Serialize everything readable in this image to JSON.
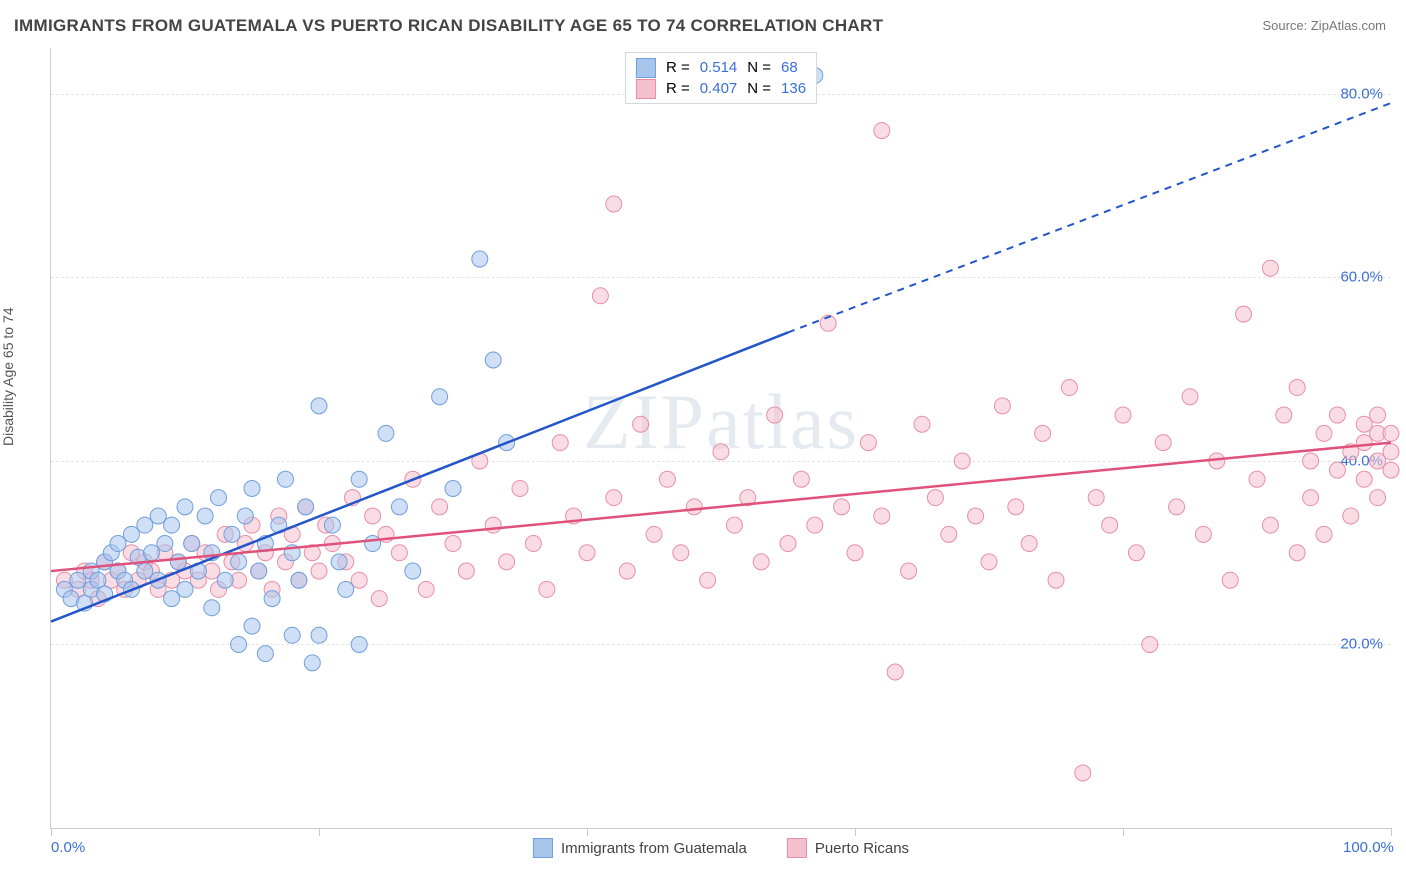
{
  "title": "IMMIGRANTS FROM GUATEMALA VS PUERTO RICAN DISABILITY AGE 65 TO 74 CORRELATION CHART",
  "source": "Source: ZipAtlas.com",
  "watermark": "ZIPatlas",
  "y_axis_label": "Disability Age 65 to 74",
  "chart": {
    "type": "scatter",
    "xlim": [
      0,
      100
    ],
    "ylim": [
      0,
      85
    ],
    "x_ticks": [
      0,
      20,
      40,
      60,
      80,
      100
    ],
    "y_gridlines": [
      20,
      40,
      60,
      80
    ],
    "x_labels": [
      {
        "v": 0,
        "t": "0.0%"
      },
      {
        "v": 100,
        "t": "100.0%"
      }
    ],
    "y_labels": [
      {
        "v": 20,
        "t": "20.0%"
      },
      {
        "v": 40,
        "t": "40.0%"
      },
      {
        "v": 60,
        "t": "60.0%"
      },
      {
        "v": 80,
        "t": "80.0%"
      }
    ],
    "grid_color": "#e4e4e4",
    "background_color": "#ffffff",
    "marker_radius": 8,
    "marker_opacity": 0.55,
    "series": [
      {
        "name": "Immigrants from Guatemala",
        "color_fill": "#a8c5ec",
        "color_stroke": "#6f9fdd",
        "trend_color": "#2356c9",
        "trend_width": 2.5,
        "trend_solid": {
          "x1": 0,
          "y1": 22.5,
          "x2": 55,
          "y2": 54
        },
        "trend_dash": {
          "x1": 55,
          "y1": 54,
          "x2": 100,
          "y2": 79
        },
        "R": "0.514",
        "N": "68",
        "points": [
          [
            1,
            26
          ],
          [
            1.5,
            25
          ],
          [
            2,
            27
          ],
          [
            2.5,
            24.5
          ],
          [
            3,
            28
          ],
          [
            3,
            26
          ],
          [
            3.5,
            27
          ],
          [
            4,
            29
          ],
          [
            4,
            25.5
          ],
          [
            4.5,
            30
          ],
          [
            5,
            28
          ],
          [
            5,
            31
          ],
          [
            5.5,
            27
          ],
          [
            6,
            32
          ],
          [
            6,
            26
          ],
          [
            6.5,
            29.5
          ],
          [
            7,
            33
          ],
          [
            7,
            28
          ],
          [
            7.5,
            30
          ],
          [
            8,
            34
          ],
          [
            8,
            27
          ],
          [
            8.5,
            31
          ],
          [
            9,
            33
          ],
          [
            9,
            25
          ],
          [
            9.5,
            29
          ],
          [
            10,
            35
          ],
          [
            10,
            26
          ],
          [
            10.5,
            31
          ],
          [
            11,
            28
          ],
          [
            11.5,
            34
          ],
          [
            12,
            30
          ],
          [
            12,
            24
          ],
          [
            12.5,
            36
          ],
          [
            13,
            27
          ],
          [
            13.5,
            32
          ],
          [
            14,
            20
          ],
          [
            14,
            29
          ],
          [
            14.5,
            34
          ],
          [
            15,
            22
          ],
          [
            15,
            37
          ],
          [
            15.5,
            28
          ],
          [
            16,
            31
          ],
          [
            16,
            19
          ],
          [
            16.5,
            25
          ],
          [
            17,
            33
          ],
          [
            17.5,
            38
          ],
          [
            18,
            21
          ],
          [
            18,
            30
          ],
          [
            18.5,
            27
          ],
          [
            19,
            35
          ],
          [
            19.5,
            18
          ],
          [
            20,
            21
          ],
          [
            20,
            46
          ],
          [
            21,
            33
          ],
          [
            21.5,
            29
          ],
          [
            22,
            26
          ],
          [
            23,
            20
          ],
          [
            23,
            38
          ],
          [
            24,
            31
          ],
          [
            25,
            43
          ],
          [
            26,
            35
          ],
          [
            27,
            28
          ],
          [
            29,
            47
          ],
          [
            30,
            37
          ],
          [
            32,
            62
          ],
          [
            33,
            51
          ],
          [
            57,
            82
          ],
          [
            34,
            42
          ]
        ]
      },
      {
        "name": "Puerto Ricans",
        "color_fill": "#f5c0ce",
        "color_stroke": "#e88fa8",
        "trend_color": "#e0527b",
        "trend_width": 2.5,
        "trend_solid": {
          "x1": 0,
          "y1": 28,
          "x2": 100,
          "y2": 42
        },
        "R": "0.407",
        "N": "136",
        "points": [
          [
            1,
            27
          ],
          [
            2,
            26
          ],
          [
            2.5,
            28
          ],
          [
            3,
            27
          ],
          [
            3.5,
            25
          ],
          [
            4,
            29
          ],
          [
            4.5,
            27
          ],
          [
            5,
            28
          ],
          [
            5.5,
            26
          ],
          [
            6,
            30
          ],
          [
            6.5,
            27
          ],
          [
            7,
            29
          ],
          [
            7.5,
            28
          ],
          [
            8,
            26
          ],
          [
            8.5,
            30
          ],
          [
            9,
            27
          ],
          [
            9.5,
            29
          ],
          [
            10,
            28
          ],
          [
            10.5,
            31
          ],
          [
            11,
            27
          ],
          [
            11.5,
            30
          ],
          [
            12,
            28
          ],
          [
            12.5,
            26
          ],
          [
            13,
            32
          ],
          [
            13.5,
            29
          ],
          [
            14,
            27
          ],
          [
            14.5,
            31
          ],
          [
            15,
            33
          ],
          [
            15.5,
            28
          ],
          [
            16,
            30
          ],
          [
            16.5,
            26
          ],
          [
            17,
            34
          ],
          [
            17.5,
            29
          ],
          [
            18,
            32
          ],
          [
            18.5,
            27
          ],
          [
            19,
            35
          ],
          [
            19.5,
            30
          ],
          [
            20,
            28
          ],
          [
            20.5,
            33
          ],
          [
            21,
            31
          ],
          [
            22,
            29
          ],
          [
            22.5,
            36
          ],
          [
            23,
            27
          ],
          [
            24,
            34
          ],
          [
            24.5,
            25
          ],
          [
            25,
            32
          ],
          [
            26,
            30
          ],
          [
            27,
            38
          ],
          [
            28,
            26
          ],
          [
            29,
            35
          ],
          [
            30,
            31
          ],
          [
            31,
            28
          ],
          [
            32,
            40
          ],
          [
            33,
            33
          ],
          [
            34,
            29
          ],
          [
            35,
            37
          ],
          [
            36,
            31
          ],
          [
            37,
            26
          ],
          [
            38,
            42
          ],
          [
            39,
            34
          ],
          [
            40,
            30
          ],
          [
            41,
            58
          ],
          [
            42,
            36
          ],
          [
            42,
            68
          ],
          [
            43,
            28
          ],
          [
            44,
            44
          ],
          [
            45,
            32
          ],
          [
            46,
            38
          ],
          [
            47,
            30
          ],
          [
            48,
            35
          ],
          [
            49,
            27
          ],
          [
            50,
            41
          ],
          [
            51,
            33
          ],
          [
            52,
            36
          ],
          [
            53,
            29
          ],
          [
            54,
            45
          ],
          [
            55,
            31
          ],
          [
            56,
            38
          ],
          [
            57,
            33
          ],
          [
            58,
            55
          ],
          [
            59,
            35
          ],
          [
            60,
            30
          ],
          [
            61,
            42
          ],
          [
            62,
            34
          ],
          [
            62,
            76
          ],
          [
            63,
            17
          ],
          [
            64,
            28
          ],
          [
            65,
            44
          ],
          [
            66,
            36
          ],
          [
            67,
            32
          ],
          [
            68,
            40
          ],
          [
            69,
            34
          ],
          [
            70,
            29
          ],
          [
            71,
            46
          ],
          [
            72,
            35
          ],
          [
            73,
            31
          ],
          [
            74,
            43
          ],
          [
            75,
            27
          ],
          [
            76,
            48
          ],
          [
            77,
            6
          ],
          [
            78,
            36
          ],
          [
            79,
            33
          ],
          [
            80,
            45
          ],
          [
            81,
            30
          ],
          [
            82,
            20
          ],
          [
            83,
            42
          ],
          [
            84,
            35
          ],
          [
            85,
            47
          ],
          [
            86,
            32
          ],
          [
            87,
            40
          ],
          [
            88,
            27
          ],
          [
            89,
            56
          ],
          [
            90,
            38
          ],
          [
            91,
            33
          ],
          [
            91,
            61
          ],
          [
            92,
            45
          ],
          [
            93,
            30
          ],
          [
            93,
            48
          ],
          [
            94,
            40
          ],
          [
            94,
            36
          ],
          [
            95,
            43
          ],
          [
            95,
            32
          ],
          [
            96,
            39
          ],
          [
            96,
            45
          ],
          [
            97,
            41
          ],
          [
            97,
            34
          ],
          [
            98,
            42
          ],
          [
            98,
            44
          ],
          [
            98,
            38
          ],
          [
            99,
            40
          ],
          [
            99,
            43
          ],
          [
            99,
            36
          ],
          [
            99,
            45
          ],
          [
            100,
            41
          ],
          [
            100,
            39
          ],
          [
            100,
            43
          ]
        ]
      }
    ]
  },
  "legend_top_labels": {
    "R": "R =",
    "N": "N ="
  }
}
